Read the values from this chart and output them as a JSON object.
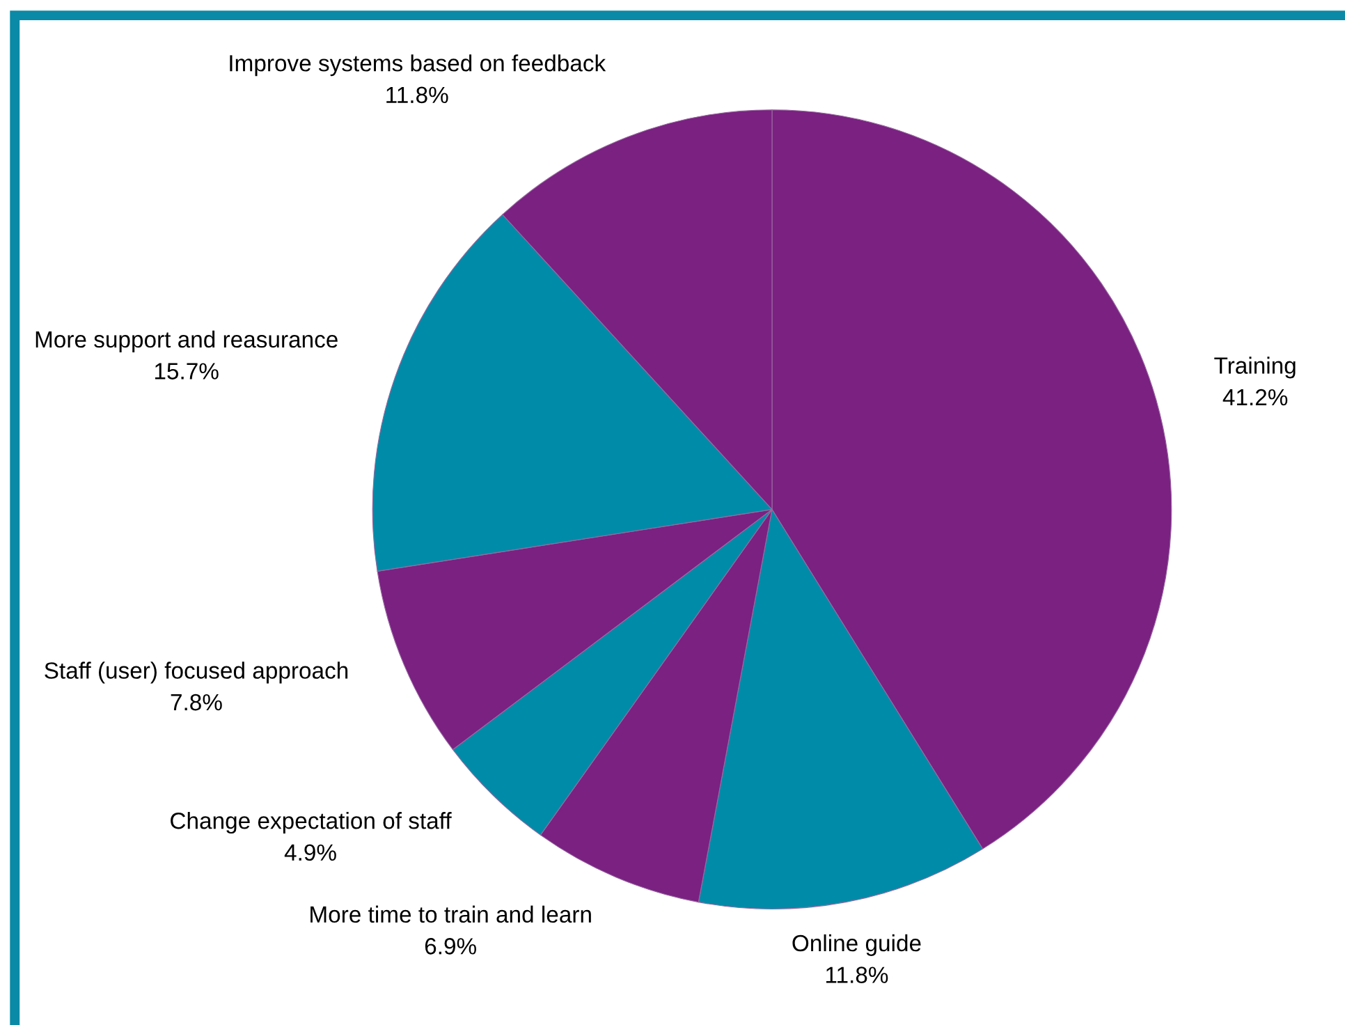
{
  "chart_data": {
    "type": "pie",
    "categories": [
      "Training",
      "Online guide",
      "More time to train and learn",
      "Change expectation of staff",
      "Staff (user) focused approach",
      "More support and reasurance",
      "Improve systems based on feedback"
    ],
    "values": [
      41.2,
      11.8,
      6.9,
      4.9,
      7.8,
      15.7,
      11.8
    ],
    "colors": [
      "#7a2182",
      "#008ba8",
      "#7a2182",
      "#008ba8",
      "#7a2182",
      "#008ba8",
      "#7a2182"
    ],
    "value_labels": [
      "41.2%",
      "11.8%",
      "6.9%",
      "4.9%",
      "7.8%",
      "15.7%",
      "11.8%"
    ]
  }
}
